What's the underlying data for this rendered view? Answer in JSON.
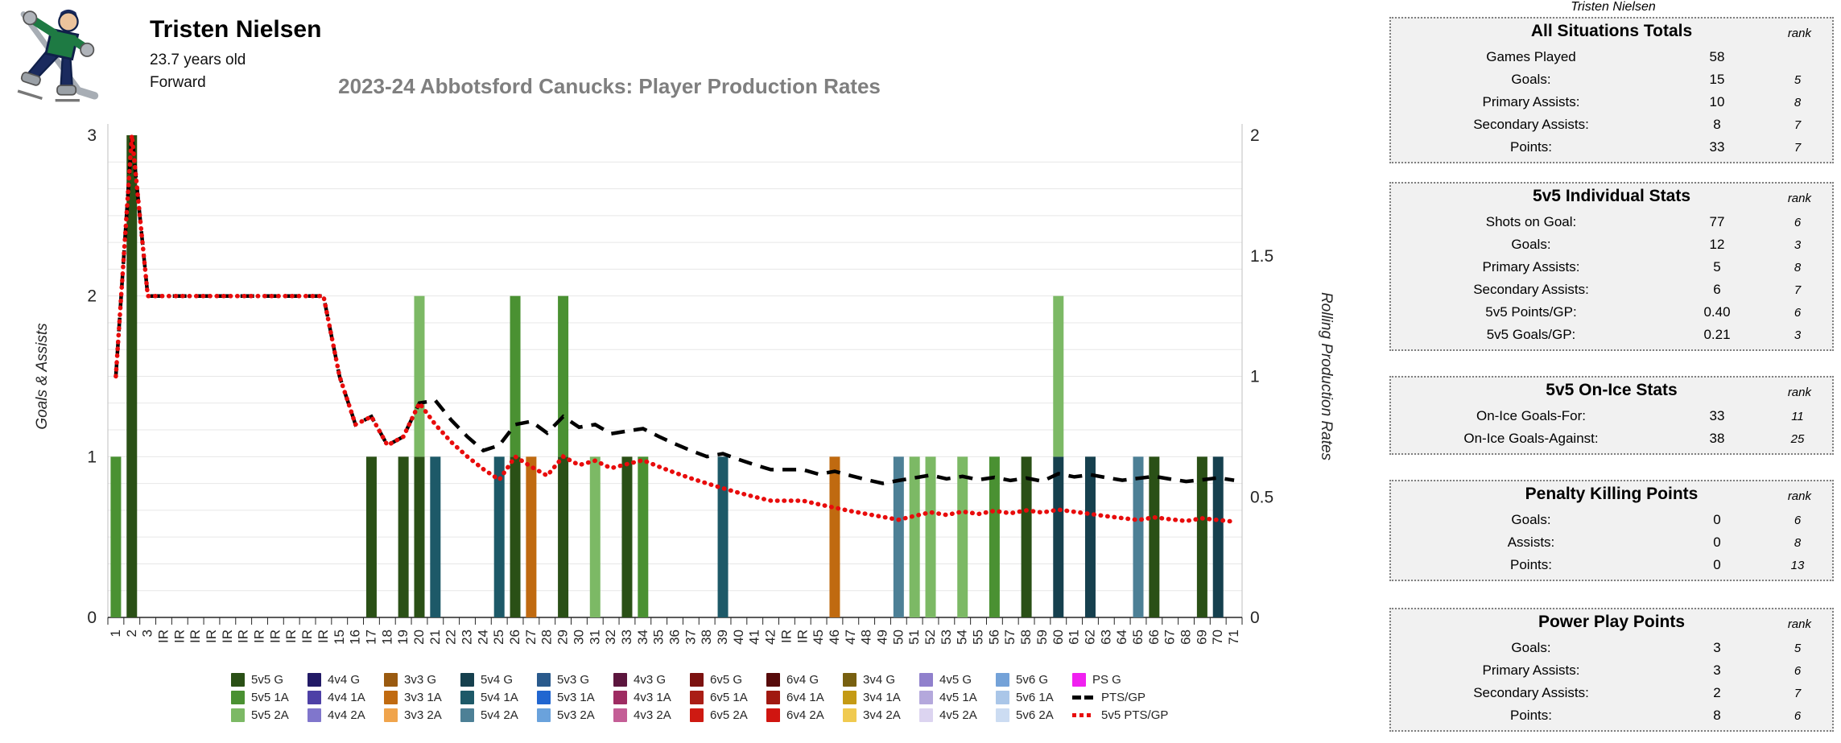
{
  "header": {
    "player_name": "Tristen Nielsen",
    "age": "23.7 years old",
    "position": "Forward",
    "team_logo": "abbotsford-canucks-skating-mascot"
  },
  "tables_caption": "Tristen Nielsen",
  "tables": [
    {
      "title": "All Situations Totals",
      "rank_label": "rank",
      "rows": [
        {
          "label": "Games Played",
          "value": "58",
          "rank": ""
        },
        {
          "label": "Goals:",
          "value": "15",
          "rank": "5"
        },
        {
          "label": "Primary Assists:",
          "value": "10",
          "rank": "8"
        },
        {
          "label": "Secondary Assists:",
          "value": "8",
          "rank": "7"
        },
        {
          "label": "Points:",
          "value": "33",
          "rank": "7"
        }
      ]
    },
    {
      "title": "5v5 Individual Stats",
      "rank_label": "rank",
      "rows": [
        {
          "label": "Shots on Goal:",
          "value": "77",
          "rank": "6"
        },
        {
          "label": "Goals:",
          "value": "12",
          "rank": "3"
        },
        {
          "label": "Primary Assists:",
          "value": "5",
          "rank": "8"
        },
        {
          "label": "Secondary Assists:",
          "value": "6",
          "rank": "7"
        },
        {
          "label": "5v5 Points/GP:",
          "value": "0.40",
          "rank": "6"
        },
        {
          "label": "5v5 Goals/GP:",
          "value": "0.21",
          "rank": "3"
        }
      ]
    },
    {
      "title": "5v5 On-Ice Stats",
      "rank_label": "rank",
      "rows": [
        {
          "label": "On-Ice Goals-For:",
          "value": "33",
          "rank": "11"
        },
        {
          "label": "On-Ice Goals-Against:",
          "value": "38",
          "rank": "25"
        }
      ]
    },
    {
      "title": "Penalty Killing Points",
      "rank_label": "rank",
      "rows": [
        {
          "label": "Goals:",
          "value": "0",
          "rank": "6"
        },
        {
          "label": "Assists:",
          "value": "0",
          "rank": "8"
        },
        {
          "label": "Points:",
          "value": "0",
          "rank": "13"
        }
      ]
    },
    {
      "title": "Power Play Points",
      "rank_label": "rank",
      "rows": [
        {
          "label": "Goals:",
          "value": "3",
          "rank": "5"
        },
        {
          "label": "Primary Assists:",
          "value": "3",
          "rank": "6"
        },
        {
          "label": "Secondary Assists:",
          "value": "2",
          "rank": "7"
        },
        {
          "label": "Points:",
          "value": "8",
          "rank": "6"
        }
      ]
    }
  ],
  "chart_data": {
    "type": "bar",
    "subtype": "stacked-bars-with-rolling-lines",
    "title": "2023-24 Abbotsford Canucks: Player Production Rates",
    "ylabel_left": "Goals & Assists",
    "ylabel_right": "Rolling Production Rates",
    "ylim_left": [
      0,
      3
    ],
    "ylim_right": [
      0,
      2
    ],
    "yticks_left": [
      "0",
      "1",
      "2",
      "3"
    ],
    "yticks_right": [
      "0",
      "0.5",
      "1",
      "1.5",
      "2"
    ],
    "x_labels": [
      "1",
      "2",
      "3",
      "IR",
      "IR",
      "IR",
      "IR",
      "IR",
      "IR",
      "IR",
      "IR",
      "IR",
      "IR",
      "IR",
      "15",
      "16",
      "17",
      "18",
      "19",
      "20",
      "21",
      "22",
      "23",
      "24",
      "25",
      "26",
      "27",
      "28",
      "29",
      "30",
      "31",
      "32",
      "33",
      "34",
      "35",
      "36",
      "37",
      "38",
      "39",
      "40",
      "41",
      "42",
      "IR",
      "IR",
      "45",
      "46",
      "47",
      "48",
      "49",
      "50",
      "51",
      "52",
      "53",
      "54",
      "55",
      "56",
      "57",
      "58",
      "59",
      "60",
      "61",
      "62",
      "63",
      "64",
      "65",
      "66",
      "67",
      "68",
      "69",
      "70",
      "71"
    ],
    "bars": [
      {
        "x": 1,
        "stack": [
          [
            "5v5 1A",
            1
          ]
        ]
      },
      {
        "x": 2,
        "stack": [
          [
            "5v5 G",
            3
          ]
        ]
      },
      {
        "x": 17,
        "stack": [
          [
            "5v5 G",
            1
          ]
        ]
      },
      {
        "x": 19,
        "stack": [
          [
            "5v5 G",
            1
          ]
        ]
      },
      {
        "x": 20,
        "stack": [
          [
            "5v5 G",
            1
          ],
          [
            "5v5 2A",
            1
          ]
        ]
      },
      {
        "x": 21,
        "stack": [
          [
            "5v4 1A",
            1
          ]
        ]
      },
      {
        "x": 25,
        "stack": [
          [
            "5v4 1A",
            1
          ]
        ]
      },
      {
        "x": 26,
        "stack": [
          [
            "5v5 G",
            1
          ],
          [
            "5v5 1A",
            1
          ]
        ]
      },
      {
        "x": 27,
        "stack": [
          [
            "3v3 1A",
            1
          ]
        ]
      },
      {
        "x": 29,
        "stack": [
          [
            "5v5 G",
            1
          ],
          [
            "5v5 1A",
            1
          ]
        ]
      },
      {
        "x": 31,
        "stack": [
          [
            "5v5 2A",
            1
          ]
        ]
      },
      {
        "x": 33,
        "stack": [
          [
            "5v5 G",
            1
          ]
        ]
      },
      {
        "x": 34,
        "stack": [
          [
            "5v5 1A",
            1
          ]
        ]
      },
      {
        "x": 39,
        "stack": [
          [
            "5v4 1A",
            1
          ]
        ]
      },
      {
        "x": 46,
        "stack": [
          [
            "3v3 1A",
            1
          ]
        ]
      },
      {
        "x": 50,
        "stack": [
          [
            "5v4 2A",
            1
          ]
        ]
      },
      {
        "x": 51,
        "stack": [
          [
            "5v5 2A",
            1
          ]
        ]
      },
      {
        "x": 52,
        "stack": [
          [
            "5v5 2A",
            1
          ]
        ]
      },
      {
        "x": 54,
        "stack": [
          [
            "5v5 2A",
            1
          ]
        ]
      },
      {
        "x": 56,
        "stack": [
          [
            "5v5 1A",
            1
          ]
        ]
      },
      {
        "x": 58,
        "stack": [
          [
            "5v5 G",
            1
          ]
        ]
      },
      {
        "x": 60,
        "stack": [
          [
            "5v4 G",
            1
          ],
          [
            "5v5 2A",
            1
          ]
        ]
      },
      {
        "x": 62,
        "stack": [
          [
            "5v4 G",
            1
          ]
        ]
      },
      {
        "x": 65,
        "stack": [
          [
            "5v4 2A",
            1
          ]
        ]
      },
      {
        "x": 66,
        "stack": [
          [
            "5v5 G",
            1
          ]
        ]
      },
      {
        "x": 69,
        "stack": [
          [
            "5v5 G",
            1
          ]
        ]
      },
      {
        "x": 70,
        "stack": [
          [
            "5v4 G",
            1
          ]
        ]
      }
    ],
    "series": [
      {
        "name": "PTS/GP",
        "style": "dash-black",
        "color": "#000000",
        "axis": "right",
        "values": [
          1.0,
          2.0,
          1.333,
          1.333,
          1.333,
          1.333,
          1.333,
          1.333,
          1.333,
          1.333,
          1.333,
          1.333,
          1.333,
          1.333,
          1.0,
          0.8,
          0.833,
          0.714,
          0.75,
          0.889,
          0.9,
          0.818,
          0.75,
          0.692,
          0.714,
          0.8,
          0.813,
          0.765,
          0.833,
          0.789,
          0.8,
          0.762,
          0.773,
          0.783,
          0.75,
          0.72,
          0.692,
          0.667,
          0.679,
          0.655,
          0.633,
          0.613,
          0.613,
          0.613,
          0.594,
          0.606,
          0.588,
          0.571,
          0.556,
          0.568,
          0.579,
          0.59,
          0.575,
          0.585,
          0.571,
          0.581,
          0.568,
          0.578,
          0.565,
          0.596,
          0.583,
          0.592,
          0.58,
          0.569,
          0.577,
          0.585,
          0.574,
          0.564,
          0.571,
          0.579,
          0.569
        ]
      },
      {
        "name": "5v5 PTS/GP",
        "style": "dots-red",
        "color": "#e80c0c",
        "axis": "right",
        "values": [
          1.0,
          2.0,
          1.333,
          1.333,
          1.333,
          1.333,
          1.333,
          1.333,
          1.333,
          1.333,
          1.333,
          1.333,
          1.333,
          1.333,
          1.0,
          0.8,
          0.833,
          0.714,
          0.75,
          0.889,
          0.8,
          0.727,
          0.667,
          0.615,
          0.571,
          0.667,
          0.625,
          0.588,
          0.667,
          0.632,
          0.65,
          0.619,
          0.636,
          0.652,
          0.625,
          0.6,
          0.577,
          0.556,
          0.536,
          0.517,
          0.5,
          0.484,
          0.484,
          0.484,
          0.469,
          0.455,
          0.441,
          0.429,
          0.417,
          0.405,
          0.421,
          0.436,
          0.425,
          0.439,
          0.429,
          0.442,
          0.432,
          0.444,
          0.435,
          0.447,
          0.438,
          0.429,
          0.42,
          0.412,
          0.404,
          0.415,
          0.407,
          0.4,
          0.411,
          0.404,
          0.397
        ]
      }
    ],
    "colors": {
      "5v5 G": "#2a5016",
      "5v5 1A": "#4a9132",
      "5v5 2A": "#7cb965",
      "4v4 G": "#221a66",
      "4v4 1A": "#4d40a6",
      "4v4 2A": "#8076cc",
      "3v3 G": "#9a5a10",
      "3v3 1A": "#c06a10",
      "3v3 2A": "#f0a44c",
      "5v4 G": "#16404e",
      "5v4 1A": "#1d5968",
      "5v4 2A": "#4d8096",
      "5v3 G": "#2a5a8c",
      "5v3 1A": "#2166d0",
      "5v3 2A": "#6aa2dc",
      "4v3 G": "#5c163e",
      "4v3 1A": "#9e2c62",
      "4v3 2A": "#c45e96",
      "6v5 G": "#7c1210",
      "6v5 1A": "#aa1e16",
      "6v5 2A": "#ce1a12",
      "6v4 G": "#570b0b",
      "6v4 1A": "#a01810",
      "6v4 2A": "#d01510",
      "3v4 G": "#786010",
      "3v4 1A": "#c49a14",
      "3v4 2A": "#f0ca50",
      "4v5 G": "#9080cc",
      "4v5 1A": "#b4a8dc",
      "4v5 2A": "#dcd4f0",
      "5v6 G": "#74a2d8",
      "5v6 1A": "#aac6e8",
      "5v6 2A": "#ccdcf2",
      "PS G": "#f020f0"
    },
    "legend_columns": [
      [
        "5v5 G",
        "5v5 1A",
        "5v5 2A"
      ],
      [
        "4v4 G",
        "4v4 1A",
        "4v4 2A"
      ],
      [
        "3v3 G",
        "3v3 1A",
        "3v3 2A"
      ],
      [
        "5v4 G",
        "5v4 1A",
        "5v4 2A"
      ],
      [
        "5v3 G",
        "5v3 1A",
        "5v3 2A"
      ],
      [
        "4v3 G",
        "4v3 1A",
        "4v3 2A"
      ],
      [
        "6v5 G",
        "6v5 1A",
        "6v5 2A"
      ],
      [
        "6v4 G",
        "6v4 1A",
        "6v4 2A"
      ],
      [
        "3v4 G",
        "3v4 1A",
        "3v4 2A"
      ],
      [
        "4v5 G",
        "4v5 1A",
        "4v5 2A"
      ],
      [
        "5v6 G",
        "5v6 1A",
        "5v6 2A"
      ],
      [
        "PS G",
        "PTS/GP",
        "5v5 PTS/GP"
      ]
    ],
    "grid": true,
    "legend_position": "bottom"
  }
}
